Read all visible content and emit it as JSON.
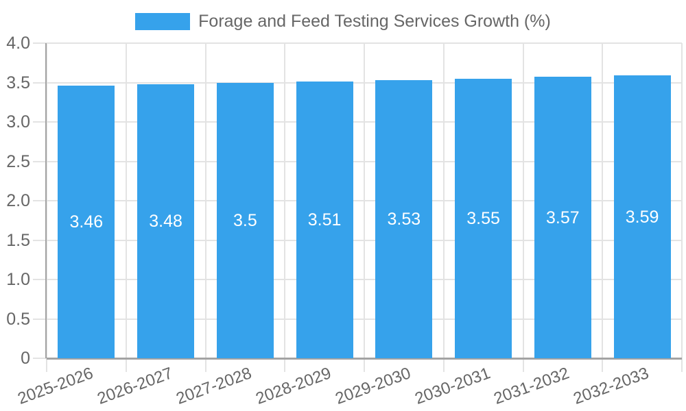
{
  "legend": {
    "label": "Forage and Feed Testing Services Growth (%)"
  },
  "chart_data": {
    "type": "bar",
    "title": "Forage and Feed Testing Services Growth (%)",
    "categories": [
      "2025-2026",
      "2026-2027",
      "2027-2028",
      "2028-2029",
      "2029-2030",
      "2030-2031",
      "2031-2032",
      "2032-2033"
    ],
    "values": [
      3.46,
      3.48,
      3.5,
      3.51,
      3.53,
      3.55,
      3.57,
      3.59
    ],
    "value_labels": [
      "3.46",
      "3.48",
      "3.5",
      "3.51",
      "3.53",
      "3.55",
      "3.57",
      "3.59"
    ],
    "xlabel": "",
    "ylabel": "",
    "ylim": [
      0,
      4.0
    ],
    "y_ticks": [
      {
        "value": 4.0,
        "label": "4.0"
      },
      {
        "value": 3.5,
        "label": "3.5"
      },
      {
        "value": 3.0,
        "label": "3.0"
      },
      {
        "value": 2.5,
        "label": "2.5"
      },
      {
        "value": 2.0,
        "label": "2.0"
      },
      {
        "value": 1.5,
        "label": "1.5"
      },
      {
        "value": 1.0,
        "label": "1.0"
      },
      {
        "value": 0.5,
        "label": "0.5"
      },
      {
        "value": 0,
        "label": "0"
      }
    ],
    "grid": true,
    "legend_position": "top",
    "colors": {
      "bar": "#36A2EB",
      "text": "#666666",
      "grid": "#e3e3e3",
      "axis": "#a3a3a3",
      "value_label": "#ffffff",
      "background": "#ffffff"
    }
  }
}
